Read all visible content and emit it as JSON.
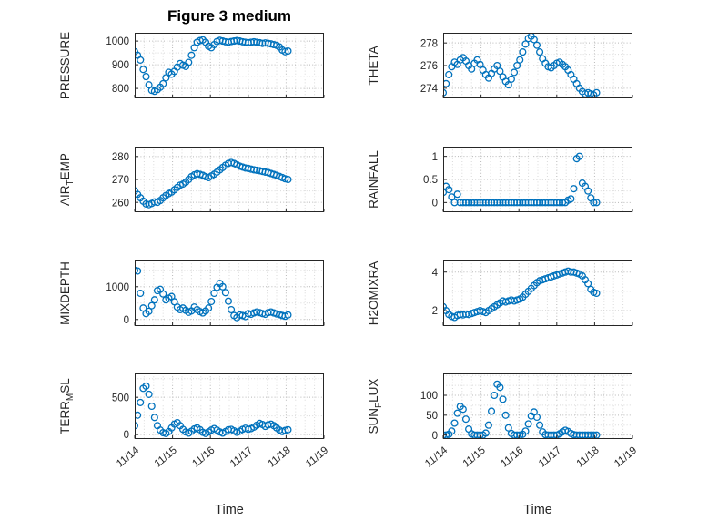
{
  "figure": {
    "title": "Figure 3 medium",
    "xlabel": "Time"
  },
  "colors": {
    "marker": "#0072BD",
    "axis_text": "#262626",
    "grid_major": "#b8b8b8",
    "grid_minor": "#d9d9d9"
  },
  "chart_data": [
    {
      "type": "scatter",
      "name": "PRESSURE",
      "title": "Figure 3 medium",
      "ylabel_parts": [
        {
          "t": "PRESSURE",
          "sub": false
        }
      ],
      "ylim": [
        758,
        1035
      ],
      "yticks": [
        800,
        900,
        1000
      ],
      "xlim": [
        0,
        5
      ],
      "xticks": [
        0,
        1,
        2,
        3,
        4,
        5
      ],
      "xtick_labels": [
        "11/14",
        "11/15",
        "11/16",
        "11/17",
        "11/18",
        "11/19"
      ],
      "x": [
        0,
        0.075,
        0.15,
        0.225,
        0.3,
        0.375,
        0.45,
        0.525,
        0.6,
        0.675,
        0.75,
        0.825,
        0.9,
        0.975,
        1.05,
        1.125,
        1.2,
        1.275,
        1.35,
        1.425,
        1.5,
        1.575,
        1.65,
        1.725,
        1.8,
        1.875,
        1.95,
        2.025,
        2.1,
        2.175,
        2.25,
        2.325,
        2.4,
        2.475,
        2.55,
        2.625,
        2.7,
        2.775,
        2.85,
        2.925,
        3,
        3.075,
        3.15,
        3.225,
        3.3,
        3.375,
        3.45,
        3.525,
        3.6,
        3.675,
        3.75,
        3.825,
        3.9,
        3.975,
        4.05
      ],
      "y": [
        955,
        940,
        920,
        880,
        850,
        815,
        792,
        788,
        795,
        805,
        820,
        845,
        868,
        860,
        872,
        890,
        905,
        898,
        893,
        910,
        940,
        972,
        995,
        1002,
        1005,
        995,
        978,
        972,
        985,
        998,
        1003,
        1000,
        997,
        995,
        998,
        1000,
        1002,
        1000,
        997,
        995,
        993,
        995,
        997,
        995,
        993,
        990,
        992,
        990,
        988,
        985,
        982,
        975,
        962,
        955,
        958
      ]
    },
    {
      "type": "scatter",
      "name": "AIR_TEMP",
      "ylabel_parts": [
        {
          "t": "AIR",
          "sub": false
        },
        {
          "t": "T",
          "sub": true
        },
        {
          "t": "EMP",
          "sub": false
        }
      ],
      "ylim": [
        255.7,
        284.3
      ],
      "yticks": [
        260,
        270,
        280
      ],
      "xlim": [
        0,
        5
      ],
      "xticks": [
        0,
        1,
        2,
        3,
        4,
        5
      ],
      "xtick_labels": [
        "11/14",
        "11/15",
        "11/16",
        "11/17",
        "11/18",
        "11/19"
      ],
      "x": [
        0,
        0.075,
        0.15,
        0.225,
        0.3,
        0.375,
        0.45,
        0.525,
        0.6,
        0.675,
        0.75,
        0.825,
        0.9,
        0.975,
        1.05,
        1.125,
        1.2,
        1.275,
        1.35,
        1.425,
        1.5,
        1.575,
        1.65,
        1.725,
        1.8,
        1.875,
        1.95,
        2.025,
        2.1,
        2.175,
        2.25,
        2.325,
        2.4,
        2.475,
        2.55,
        2.625,
        2.7,
        2.775,
        2.85,
        2.925,
        3,
        3.075,
        3.15,
        3.225,
        3.3,
        3.375,
        3.45,
        3.525,
        3.6,
        3.675,
        3.75,
        3.825,
        3.9,
        3.975,
        4.05
      ],
      "y": [
        265,
        263.5,
        262,
        260.5,
        259.3,
        259,
        259.5,
        260.2,
        260,
        260.8,
        262,
        263,
        263.8,
        264.5,
        265.5,
        266.5,
        267.5,
        268,
        268.8,
        270,
        271.2,
        272,
        272.5,
        272.2,
        271.8,
        271.2,
        270.8,
        271.5,
        272.3,
        273.2,
        274.2,
        275.2,
        276.2,
        277,
        277.4,
        277,
        276.4,
        275.8,
        275.4,
        275,
        274.8,
        274.5,
        274.2,
        274,
        273.8,
        273.5,
        273.2,
        273,
        272.6,
        272.2,
        271.8,
        271.3,
        270.8,
        270.3,
        270
      ]
    },
    {
      "type": "scatter",
      "name": "MIXDEPTH",
      "ylabel_parts": [
        {
          "t": "MIXDEPTH",
          "sub": false
        }
      ],
      "ylim": [
        -200,
        1800
      ],
      "yticks": [
        0,
        1000
      ],
      "xlim": [
        0,
        5
      ],
      "xticks": [
        0,
        1,
        2,
        3,
        4,
        5
      ],
      "xtick_labels": [
        "11/14",
        "11/15",
        "11/16",
        "11/17",
        "11/18",
        "11/19"
      ],
      "x": [
        0,
        0.075,
        0.15,
        0.225,
        0.3,
        0.375,
        0.45,
        0.525,
        0.6,
        0.675,
        0.75,
        0.825,
        0.9,
        0.975,
        1.05,
        1.125,
        1.2,
        1.275,
        1.35,
        1.425,
        1.5,
        1.575,
        1.65,
        1.725,
        1.8,
        1.875,
        1.95,
        2.025,
        2.1,
        2.175,
        2.25,
        2.325,
        2.4,
        2.475,
        2.55,
        2.625,
        2.7,
        2.775,
        2.85,
        2.925,
        3,
        3.075,
        3.15,
        3.225,
        3.3,
        3.375,
        3.45,
        3.525,
        3.6,
        3.675,
        3.75,
        3.825,
        3.9,
        3.975,
        4.05
      ],
      "y": [
        1500,
        1480,
        800,
        350,
        180,
        250,
        420,
        600,
        880,
        920,
        780,
        600,
        650,
        700,
        540,
        380,
        300,
        350,
        280,
        220,
        260,
        380,
        300,
        240,
        200,
        260,
        350,
        550,
        800,
        980,
        1100,
        1000,
        820,
        560,
        300,
        120,
        60,
        140,
        120,
        90,
        180,
        160,
        200,
        230,
        210,
        180,
        160,
        210,
        230,
        200,
        170,
        150,
        120,
        100,
        140
      ]
    },
    {
      "type": "scatter",
      "name": "TERR_MSL",
      "ylabel_parts": [
        {
          "t": "TERR",
          "sub": false
        },
        {
          "t": "M",
          "sub": true
        },
        {
          "t": "SL",
          "sub": false
        }
      ],
      "ylim": [
        -60,
        820
      ],
      "yticks": [
        0,
        500
      ],
      "xlim": [
        0,
        5
      ],
      "xticks": [
        0,
        1,
        2,
        3,
        4,
        5
      ],
      "xtick_labels": [
        "11/14",
        "11/15",
        "11/16",
        "11/17",
        "11/18",
        "11/19"
      ],
      "x": [
        0,
        0.075,
        0.15,
        0.225,
        0.3,
        0.375,
        0.45,
        0.525,
        0.6,
        0.675,
        0.75,
        0.825,
        0.9,
        0.975,
        1.05,
        1.125,
        1.2,
        1.275,
        1.35,
        1.425,
        1.5,
        1.575,
        1.65,
        1.725,
        1.8,
        1.875,
        1.95,
        2.025,
        2.1,
        2.175,
        2.25,
        2.325,
        2.4,
        2.475,
        2.55,
        2.625,
        2.7,
        2.775,
        2.85,
        2.925,
        3,
        3.075,
        3.15,
        3.225,
        3.3,
        3.375,
        3.45,
        3.525,
        3.6,
        3.675,
        3.75,
        3.825,
        3.9,
        3.975,
        4.05
      ],
      "y": [
        120,
        260,
        430,
        620,
        650,
        540,
        380,
        230,
        120,
        60,
        25,
        15,
        40,
        90,
        140,
        160,
        120,
        70,
        35,
        20,
        45,
        75,
        90,
        65,
        30,
        15,
        35,
        60,
        80,
        60,
        35,
        20,
        40,
        65,
        70,
        50,
        30,
        45,
        70,
        85,
        70,
        80,
        100,
        125,
        150,
        135,
        110,
        130,
        140,
        120,
        90,
        60,
        40,
        55,
        65
      ]
    },
    {
      "type": "scatter",
      "name": "THETA",
      "ylabel_parts": [
        {
          "t": "THETA",
          "sub": false
        }
      ],
      "ylim": [
        273.1,
        278.9
      ],
      "yticks": [
        274,
        276,
        278
      ],
      "xlim": [
        0,
        5
      ],
      "xticks": [
        0,
        1,
        2,
        3,
        4,
        5
      ],
      "xtick_labels": [
        "11/14",
        "11/15",
        "11/16",
        "11/17",
        "11/18",
        "11/19"
      ],
      "x": [
        0,
        0.075,
        0.15,
        0.225,
        0.3,
        0.375,
        0.45,
        0.525,
        0.6,
        0.675,
        0.75,
        0.825,
        0.9,
        0.975,
        1.05,
        1.125,
        1.2,
        1.275,
        1.35,
        1.425,
        1.5,
        1.575,
        1.65,
        1.725,
        1.8,
        1.875,
        1.95,
        2.025,
        2.1,
        2.175,
        2.25,
        2.325,
        2.4,
        2.475,
        2.55,
        2.625,
        2.7,
        2.775,
        2.85,
        2.925,
        3,
        3.075,
        3.15,
        3.225,
        3.3,
        3.375,
        3.45,
        3.525,
        3.6,
        3.675,
        3.75,
        3.825,
        3.9,
        3.975,
        4.05
      ],
      "y": [
        273.6,
        274.4,
        275.2,
        275.9,
        276.3,
        276.1,
        276.5,
        276.7,
        276.4,
        276,
        275.7,
        276.2,
        276.5,
        276.1,
        275.6,
        275.2,
        274.9,
        275.3,
        275.7,
        276,
        275.5,
        275,
        274.6,
        274.3,
        274.8,
        275.4,
        276,
        276.5,
        277.2,
        277.9,
        278.4,
        278.6,
        278.3,
        277.8,
        277.2,
        276.6,
        276.2,
        275.9,
        275.8,
        276,
        276.2,
        276.3,
        276.1,
        275.9,
        275.6,
        275.2,
        274.8,
        274.4,
        274,
        273.7,
        273.5,
        273.6,
        273.5,
        273.4,
        273.6
      ]
    },
    {
      "type": "scatter",
      "name": "RAINFALL",
      "ylabel_parts": [
        {
          "t": "RAINFALL",
          "sub": false
        }
      ],
      "ylim": [
        -0.21,
        1.21
      ],
      "yticks": [
        0,
        0.5,
        1
      ],
      "xlim": [
        0,
        5
      ],
      "xticks": [
        0,
        1,
        2,
        3,
        4,
        5
      ],
      "xtick_labels": [
        "11/14",
        "11/15",
        "11/16",
        "11/17",
        "11/18",
        "11/19"
      ],
      "x": [
        0,
        0.075,
        0.15,
        0.225,
        0.3,
        0.375,
        0.45,
        0.525,
        0.6,
        0.675,
        0.75,
        0.825,
        0.9,
        0.975,
        1.05,
        1.125,
        1.2,
        1.275,
        1.35,
        1.425,
        1.5,
        1.575,
        1.65,
        1.725,
        1.8,
        1.875,
        1.95,
        2.025,
        2.1,
        2.175,
        2.25,
        2.325,
        2.4,
        2.475,
        2.55,
        2.625,
        2.7,
        2.775,
        2.85,
        2.925,
        3,
        3.075,
        3.15,
        3.225,
        3.3,
        3.375,
        3.45,
        3.525,
        3.6,
        3.675,
        3.75,
        3.825,
        3.9,
        3.975,
        4.05
      ],
      "y": [
        0.22,
        0.35,
        0.28,
        0.12,
        0,
        0.18,
        0,
        0,
        0,
        0,
        0,
        0,
        0,
        0,
        0,
        0,
        0,
        0,
        0,
        0,
        0,
        0,
        0,
        0,
        0,
        0,
        0,
        0,
        0,
        0,
        0,
        0,
        0,
        0,
        0,
        0,
        0,
        0,
        0,
        0,
        0,
        0,
        0,
        0,
        0.05,
        0.08,
        0.3,
        0.95,
        1,
        0.42,
        0.35,
        0.25,
        0.1,
        0,
        0
      ]
    },
    {
      "type": "scatter",
      "name": "H2OMIXRA",
      "ylabel_parts": [
        {
          "t": "H2OMIXRA",
          "sub": false
        }
      ],
      "ylim": [
        1.2,
        4.6
      ],
      "yticks": [
        2,
        4
      ],
      "xlim": [
        0,
        5
      ],
      "xticks": [
        0,
        1,
        2,
        3,
        4,
        5
      ],
      "xtick_labels": [
        "11/14",
        "11/15",
        "11/16",
        "11/17",
        "11/18",
        "11/19"
      ],
      "x": [
        0,
        0.075,
        0.15,
        0.225,
        0.3,
        0.375,
        0.45,
        0.525,
        0.6,
        0.675,
        0.75,
        0.825,
        0.9,
        0.975,
        1.05,
        1.125,
        1.2,
        1.275,
        1.35,
        1.425,
        1.5,
        1.575,
        1.65,
        1.725,
        1.8,
        1.875,
        1.95,
        2.025,
        2.1,
        2.175,
        2.25,
        2.325,
        2.4,
        2.475,
        2.55,
        2.625,
        2.7,
        2.775,
        2.85,
        2.925,
        3,
        3.075,
        3.15,
        3.225,
        3.3,
        3.375,
        3.45,
        3.525,
        3.6,
        3.675,
        3.75,
        3.825,
        3.9,
        3.975,
        4.05
      ],
      "y": [
        2.2,
        2,
        1.8,
        1.7,
        1.65,
        1.75,
        1.8,
        1.78,
        1.82,
        1.8,
        1.85,
        1.9,
        1.95,
        2,
        1.95,
        1.9,
        2,
        2.1,
        2.2,
        2.3,
        2.4,
        2.5,
        2.45,
        2.5,
        2.55,
        2.5,
        2.55,
        2.6,
        2.7,
        2.85,
        3,
        3.15,
        3.3,
        3.45,
        3.55,
        3.6,
        3.65,
        3.7,
        3.75,
        3.8,
        3.85,
        3.9,
        3.95,
        4,
        4.05,
        4,
        4,
        3.95,
        3.9,
        3.8,
        3.6,
        3.4,
        3.1,
        2.95,
        2.9
      ]
    },
    {
      "type": "scatter",
      "name": "SUN_FLUX",
      "ylabel_parts": [
        {
          "t": "SUN",
          "sub": false
        },
        {
          "t": "F",
          "sub": true
        },
        {
          "t": "LUX",
          "sub": false
        }
      ],
      "ylim": [
        -10,
        155
      ],
      "yticks": [
        0,
        50,
        100
      ],
      "xlim": [
        0,
        5
      ],
      "xticks": [
        0,
        1,
        2,
        3,
        4,
        5
      ],
      "xtick_labels": [
        "11/14",
        "11/15",
        "11/16",
        "11/17",
        "11/18",
        "11/19"
      ],
      "x": [
        0,
        0.075,
        0.15,
        0.225,
        0.3,
        0.375,
        0.45,
        0.525,
        0.6,
        0.675,
        0.75,
        0.825,
        0.9,
        0.975,
        1.05,
        1.125,
        1.2,
        1.275,
        1.35,
        1.425,
        1.5,
        1.575,
        1.65,
        1.725,
        1.8,
        1.875,
        1.95,
        2.025,
        2.1,
        2.175,
        2.25,
        2.325,
        2.4,
        2.475,
        2.55,
        2.625,
        2.7,
        2.775,
        2.85,
        2.925,
        3,
        3.075,
        3.15,
        3.225,
        3.3,
        3.375,
        3.45,
        3.525,
        3.6,
        3.675,
        3.75,
        3.825,
        3.9,
        3.975,
        4.05
      ],
      "y": [
        0,
        0,
        2,
        10,
        30,
        55,
        72,
        65,
        40,
        15,
        3,
        0,
        0,
        0,
        0,
        5,
        25,
        60,
        100,
        128,
        120,
        90,
        50,
        18,
        4,
        0,
        0,
        0,
        2,
        10,
        28,
        48,
        58,
        45,
        25,
        8,
        1,
        0,
        0,
        0,
        0,
        3,
        8,
        12,
        9,
        4,
        1,
        0,
        0,
        0,
        0,
        0,
        0,
        0,
        0
      ]
    }
  ]
}
